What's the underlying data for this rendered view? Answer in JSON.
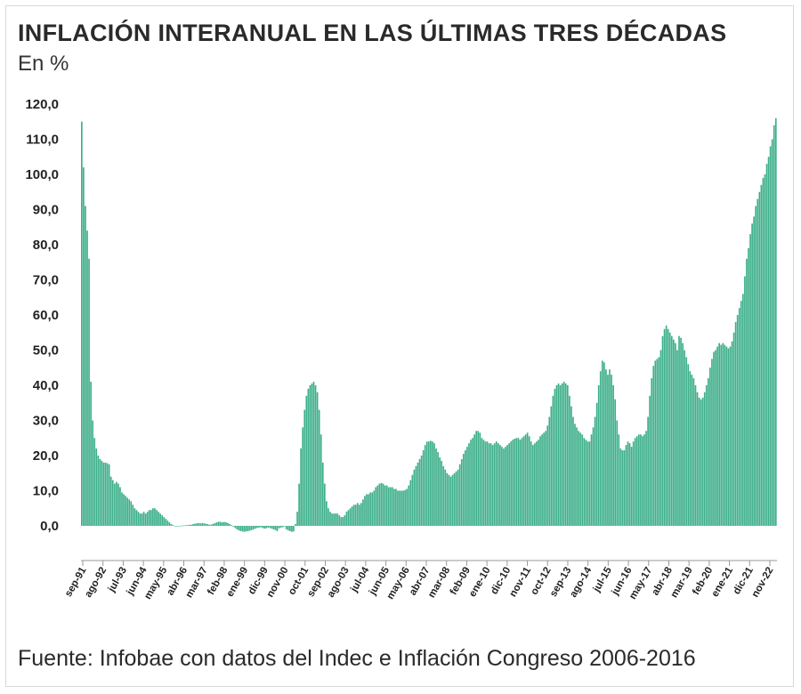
{
  "title": "INFLACIÓN INTERANUAL EN LAS ÚLTIMAS TRES DÉCADAS",
  "subtitle": "En %",
  "source": "Fuente: Infobae con datos del Indec e Inflación Congreso 2006-2016",
  "colors": {
    "bar": "#3daf8a",
    "axis": "#777777",
    "text": "#222222"
  },
  "chart_data": {
    "type": "bar",
    "title": "INFLACIÓN INTERANUAL EN LAS ÚLTIMAS TRES DÉCADAS",
    "ylabel": "En %",
    "ylim": [
      -5,
      120
    ],
    "yticks": [
      "120,0",
      "110,0",
      "100,0",
      "90,0",
      "80,0",
      "70,0",
      "60,0",
      "50,0",
      "40,0",
      "30,0",
      "20,0",
      "10,0",
      "0,0"
    ],
    "ytick_values": [
      120,
      110,
      100,
      90,
      80,
      70,
      60,
      50,
      40,
      30,
      20,
      10,
      0
    ],
    "x_tick_labels": [
      "sep-91",
      "ago-92",
      "jul-93",
      "jun-94",
      "may-95",
      "abr-96",
      "mar-97",
      "feb-98",
      "ene-99",
      "dic-99",
      "nov-00",
      "oct-01",
      "sep-02",
      "ago-03",
      "jul-04",
      "jun-05",
      "may-06",
      "abr-07",
      "mar-08",
      "feb-09",
      "ene-10",
      "dic-10",
      "nov-11",
      "oct-12",
      "sep-13",
      "ago-14",
      "jul-15",
      "jun-16",
      "may-17",
      "abr-18",
      "mar-19",
      "feb-20",
      "ene-21",
      "dic-21",
      "nov-22"
    ],
    "values": [
      115.0,
      102.0,
      91.0,
      84.0,
      76.0,
      41.0,
      30.0,
      25.0,
      22.0,
      20.0,
      19.0,
      18.5,
      18.0,
      18.0,
      17.8,
      17.5,
      14.0,
      13.0,
      12.0,
      12.5,
      12.0,
      11.0,
      9.5,
      9.0,
      8.5,
      8.0,
      7.5,
      7.0,
      6.0,
      5.0,
      4.5,
      4.0,
      3.5,
      3.5,
      4.0,
      3.5,
      4.0,
      4.5,
      4.5,
      5.0,
      5.0,
      4.5,
      4.0,
      3.5,
      3.0,
      2.5,
      2.0,
      1.5,
      1.0,
      0.5,
      0.2,
      0.0,
      0.0,
      -0.1,
      0.0,
      0.1,
      0.1,
      0.2,
      0.2,
      0.3,
      0.3,
      0.5,
      0.6,
      0.7,
      0.8,
      0.7,
      0.8,
      0.7,
      0.6,
      0.5,
      0.3,
      0.4,
      0.6,
      0.8,
      1.0,
      1.2,
      1.1,
      1.0,
      1.1,
      1.0,
      0.8,
      0.5,
      0.2,
      -0.2,
      -0.6,
      -1.0,
      -1.3,
      -1.5,
      -1.6,
      -1.7,
      -1.6,
      -1.5,
      -1.4,
      -1.2,
      -1.0,
      -0.8,
      -0.6,
      -0.5,
      -0.4,
      -0.6,
      -0.8,
      -0.7,
      -0.5,
      -0.6,
      -0.8,
      -1.0,
      -1.2,
      -1.5,
      -0.7,
      -0.5,
      -0.4,
      0.0,
      -1.0,
      -1.3,
      -1.5,
      -1.7,
      -1.6,
      0.5,
      4.0,
      12.0,
      22.0,
      28.0,
      33.0,
      37.0,
      39.0,
      40.0,
      40.5,
      41.0,
      40.0,
      38.0,
      33.0,
      26.0,
      18.0,
      12.0,
      7.0,
      5.0,
      4.0,
      3.5,
      3.5,
      3.5,
      3.5,
      3.0,
      2.5,
      2.5,
      3.0,
      4.0,
      4.5,
      5.0,
      5.5,
      6.0,
      6.0,
      6.5,
      6.0,
      6.5,
      7.5,
      8.5,
      9.0,
      9.0,
      9.5,
      9.5,
      10.0,
      11.0,
      11.5,
      12.0,
      12.2,
      12.0,
      11.5,
      11.5,
      11.0,
      11.0,
      11.0,
      10.5,
      10.5,
      10.0,
      10.0,
      10.0,
      10.0,
      10.2,
      10.5,
      11.5,
      13.0,
      14.5,
      16.0,
      17.0,
      18.0,
      19.0,
      20.0,
      21.5,
      23.0,
      24.0,
      24.0,
      24.2,
      24.0,
      23.5,
      22.0,
      21.0,
      19.5,
      18.5,
      17.0,
      16.0,
      15.0,
      14.5,
      14.0,
      14.5,
      15.0,
      15.5,
      16.0,
      17.5,
      19.0,
      20.5,
      21.5,
      22.5,
      23.5,
      24.5,
      25.0,
      26.0,
      27.0,
      27.0,
      26.5,
      25.0,
      24.5,
      24.0,
      24.0,
      23.5,
      23.5,
      23.0,
      23.5,
      24.0,
      23.5,
      23.0,
      22.5,
      22.0,
      22.5,
      23.0,
      23.5,
      24.0,
      24.5,
      24.8,
      25.0,
      25.0,
      24.5,
      25.0,
      25.5,
      26.0,
      26.5,
      25.5,
      24.0,
      23.0,
      23.5,
      24.0,
      24.5,
      25.5,
      26.0,
      26.5,
      27.0,
      28.5,
      31.0,
      34.0,
      37.0,
      39.0,
      40.0,
      40.5,
      40.0,
      40.5,
      41.0,
      40.5,
      40.0,
      37.0,
      34.0,
      31.0,
      29.0,
      28.0,
      27.0,
      26.5,
      26.0,
      25.0,
      24.5,
      24.0,
      24.0,
      26.0,
      28.0,
      31.0,
      35.0,
      40.0,
      44.0,
      47.0,
      46.5,
      44.5,
      43.0,
      44.5,
      43.0,
      40.0,
      36.0,
      30.0,
      26.0,
      22.0,
      21.5,
      21.5,
      23.0,
      24.0,
      23.5,
      22.5,
      24.0,
      25.0,
      25.5,
      26.0,
      26.0,
      25.5,
      26.0,
      27.0,
      31.0,
      37.0,
      42.0,
      45.5,
      47.0,
      47.5,
      48.0,
      50.0,
      54.0,
      56.0,
      57.0,
      56.0,
      55.0,
      54.0,
      53.0,
      52.0,
      50.0,
      54.0,
      53.5,
      52.0,
      50.0,
      48.0,
      46.0,
      44.0,
      43.0,
      42.0,
      40.0,
      38.0,
      36.5,
      36.0,
      36.5,
      38.0,
      40.0,
      42.0,
      45.0,
      47.5,
      49.5,
      50.0,
      51.0,
      52.0,
      51.5,
      52.0,
      51.5,
      51.0,
      50.5,
      51.0,
      52.5,
      55.0,
      58.0,
      60.0,
      62.0,
      64.0,
      66.0,
      71.0,
      76.0,
      79.0,
      83.0,
      86.0,
      88.0,
      91.0,
      93.0,
      95.0,
      97.0,
      99.0,
      100.0,
      103.0,
      105.0,
      108.0,
      110.0,
      114.0,
      116.0
    ]
  }
}
